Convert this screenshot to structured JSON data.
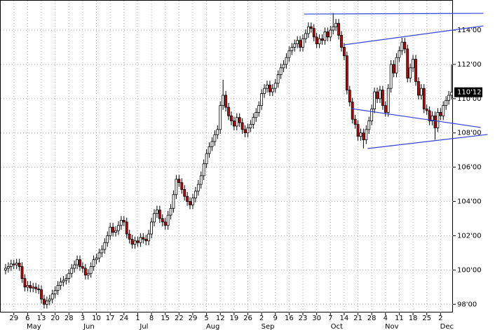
{
  "chart_data": {
    "type": "candlestick",
    "categories": [
      null,
      null,
      null,
      "29",
      null,
      null,
      null,
      null,
      "6",
      null,
      null,
      null,
      null,
      "13",
      null,
      null,
      null,
      null,
      "20",
      null,
      null,
      null,
      null,
      "28",
      null,
      null,
      null,
      null,
      "3",
      null,
      null,
      null,
      null,
      "10",
      null,
      null,
      null,
      null,
      "17",
      null,
      null,
      null,
      null,
      "24",
      null,
      null,
      null,
      null,
      "1",
      null,
      null,
      null,
      null,
      "8",
      null,
      null,
      null,
      null,
      "15",
      null,
      null,
      null,
      null,
      "22",
      null,
      null,
      null,
      null,
      "29",
      null,
      null,
      null,
      null,
      "5",
      null,
      null,
      null,
      null,
      "12",
      null,
      null,
      null,
      null,
      "19",
      null,
      null,
      null,
      null,
      "26",
      null,
      null,
      null,
      null,
      "2",
      null,
      null,
      null,
      null,
      "9",
      null,
      null,
      null,
      null,
      "16",
      null,
      null,
      null,
      null,
      "23",
      null,
      null,
      null,
      null,
      "30",
      null,
      null,
      null,
      null,
      "7",
      null,
      null,
      null,
      null,
      "14",
      null,
      null,
      null,
      null,
      "21",
      null,
      null,
      null,
      null,
      "28",
      null,
      null,
      null,
      null,
      "4",
      null,
      null,
      null,
      null,
      "11",
      null,
      null,
      null,
      null,
      "18",
      null,
      null,
      null,
      null,
      "25",
      null,
      null,
      null,
      null,
      "2",
      null,
      null,
      null,
      null
    ],
    "months": [
      null,
      null,
      null,
      null,
      null,
      null,
      null,
      null,
      "May",
      null,
      null,
      null,
      null,
      null,
      null,
      null,
      null,
      null,
      null,
      null,
      null,
      null,
      null,
      null,
      null,
      null,
      null,
      null,
      "Jun",
      null,
      null,
      null,
      null,
      null,
      null,
      null,
      null,
      null,
      null,
      null,
      null,
      null,
      null,
      null,
      null,
      null,
      null,
      null,
      "Jul",
      null,
      null,
      null,
      null,
      null,
      null,
      null,
      null,
      null,
      null,
      null,
      null,
      null,
      null,
      null,
      null,
      null,
      null,
      null,
      null,
      null,
      null,
      null,
      null,
      "Aug",
      null,
      null,
      null,
      null,
      null,
      null,
      null,
      null,
      null,
      null,
      null,
      null,
      null,
      null,
      null,
      null,
      null,
      null,
      null,
      "Sep",
      null,
      null,
      null,
      null,
      null,
      null,
      null,
      null,
      null,
      null,
      null,
      null,
      null,
      null,
      null,
      null,
      null,
      null,
      null,
      null,
      null,
      null,
      null,
      null,
      "Oct",
      null,
      null,
      null,
      null,
      null,
      null,
      null,
      null,
      null,
      null,
      null,
      null,
      null,
      null,
      null,
      null,
      null,
      null,
      null,
      "Nov",
      null,
      null,
      null,
      null,
      null,
      null,
      null,
      null,
      null,
      null,
      null,
      null,
      null,
      null,
      null,
      null,
      null,
      null,
      null,
      "Dec",
      null,
      null,
      null,
      null
    ],
    "open": [
      100.0,
      100.1,
      100.2,
      100.35,
      100.3,
      100.4,
      100.2,
      99.5,
      99.0,
      99.1,
      98.95,
      99.0,
      98.9,
      98.85,
      98.3,
      98.0,
      98.2,
      98.3,
      98.6,
      98.8,
      99.1,
      99.3,
      99.4,
      99.5,
      99.8,
      100.1,
      100.3,
      100.6,
      100.2,
      100.1,
      99.7,
      99.8,
      100.2,
      100.6,
      100.7,
      101.0,
      101.2,
      101.6,
      102.0,
      102.5,
      102.2,
      102.3,
      102.6,
      102.9,
      102.8,
      102.1,
      101.8,
      101.5,
      101.7,
      101.6,
      101.9,
      101.8,
      101.7,
      102.1,
      102.8,
      103.3,
      103.5,
      103.0,
      102.8,
      102.6,
      103.2,
      103.6,
      104.4,
      105.3,
      105.1,
      104.7,
      104.3,
      104.0,
      103.8,
      104.2,
      104.6,
      105.0,
      105.5,
      106.2,
      106.8,
      107.2,
      107.5,
      107.9,
      108.2,
      109.6,
      110.2,
      109.5,
      109.0,
      108.7,
      108.4,
      108.9,
      108.6,
      108.2,
      108.0,
      108.3,
      108.5,
      108.9,
      109.2,
      109.6,
      110.3,
      110.6,
      110.8,
      110.4,
      110.6,
      110.9,
      111.4,
      111.8,
      112.0,
      112.4,
      112.8,
      113.0,
      113.2,
      113.4,
      113.0,
      113.5,
      113.8,
      114.2,
      114.1,
      113.6,
      113.2,
      113.5,
      113.4,
      113.9,
      113.6,
      114.0,
      114.2,
      114.4,
      113.7,
      113.0,
      112.5,
      110.5,
      109.8,
      108.8,
      108.5,
      107.8,
      108.0,
      107.6,
      108.2,
      108.7,
      109.4,
      110.4,
      110.0,
      110.5,
      109.6,
      109.2,
      110.6,
      112.0,
      111.5,
      112.4,
      112.8,
      113.3,
      112.9,
      111.2,
      111.8,
      112.3,
      111.0,
      110.2,
      110.6,
      109.4,
      109.3,
      108.7,
      109.0,
      108.3,
      109.2,
      109.0,
      109.6,
      109.9,
      110.2
    ],
    "high": [
      100.35,
      100.45,
      100.6,
      100.6,
      100.65,
      100.65,
      100.45,
      99.75,
      99.35,
      99.35,
      99.25,
      99.25,
      99.15,
      99.1,
      98.55,
      98.45,
      98.55,
      98.85,
      99.05,
      99.35,
      99.55,
      99.65,
      99.75,
      100.05,
      100.35,
      100.55,
      100.85,
      100.85,
      100.45,
      100.35,
      100.05,
      100.45,
      100.85,
      100.95,
      101.25,
      101.45,
      101.85,
      102.25,
      102.75,
      102.75,
      102.55,
      102.85,
      103.15,
      103.15,
      103.05,
      102.35,
      102.05,
      101.95,
      101.95,
      102.15,
      102.15,
      102.05,
      102.35,
      103.05,
      103.55,
      103.75,
      103.75,
      103.25,
      103.05,
      103.45,
      103.85,
      104.65,
      105.55,
      105.55,
      105.35,
      104.95,
      104.55,
      104.25,
      104.45,
      104.85,
      105.25,
      105.75,
      106.45,
      107.05,
      107.45,
      107.75,
      108.15,
      108.45,
      109.85,
      111.1,
      110.45,
      109.75,
      109.25,
      108.95,
      109.15,
      109.15,
      108.85,
      108.45,
      108.55,
      108.75,
      109.15,
      109.45,
      109.85,
      110.55,
      110.85,
      111.05,
      111.05,
      110.85,
      111.15,
      111.65,
      112.05,
      112.25,
      112.65,
      113.05,
      113.25,
      113.45,
      113.65,
      113.65,
      113.75,
      114.05,
      114.45,
      114.45,
      114.35,
      113.85,
      113.75,
      113.75,
      114.15,
      114.15,
      114.25,
      115.0,
      114.65,
      114.65,
      113.95,
      113.25,
      112.75,
      110.75,
      110.05,
      109.05,
      108.75,
      108.25,
      108.25,
      108.45,
      108.95,
      109.65,
      110.65,
      110.65,
      110.75,
      110.75,
      109.85,
      110.85,
      112.25,
      112.25,
      112.65,
      113.05,
      113.55,
      113.55,
      113.15,
      112.05,
      112.55,
      112.55,
      111.25,
      110.85,
      110.85,
      109.65,
      109.55,
      109.25,
      109.25,
      109.45,
      109.45,
      109.85,
      110.15,
      110.45,
      112.0
    ],
    "low": [
      99.75,
      99.85,
      99.95,
      100.05,
      100.05,
      99.95,
      99.25,
      98.75,
      98.75,
      98.7,
      98.7,
      98.65,
      98.6,
      98.05,
      97.75,
      97.75,
      97.95,
      98.05,
      98.35,
      98.55,
      98.85,
      99.05,
      99.15,
      99.25,
      99.55,
      99.85,
      100.05,
      99.95,
      99.85,
      99.45,
      99.45,
      99.55,
      99.95,
      100.35,
      100.45,
      100.75,
      100.95,
      101.35,
      101.75,
      101.95,
      101.95,
      102.05,
      102.35,
      102.55,
      101.85,
      101.55,
      101.25,
      101.25,
      101.35,
      101.35,
      101.55,
      101.45,
      101.45,
      101.85,
      102.55,
      103.05,
      102.75,
      102.55,
      102.35,
      102.35,
      102.95,
      103.35,
      104.15,
      104.85,
      104.45,
      104.05,
      103.75,
      103.55,
      103.55,
      103.95,
      104.35,
      104.75,
      105.25,
      105.95,
      106.55,
      106.95,
      107.25,
      107.65,
      107.95,
      109.35,
      109.25,
      108.75,
      108.45,
      108.15,
      108.15,
      108.35,
      107.95,
      107.75,
      107.75,
      108.05,
      108.25,
      108.65,
      108.95,
      109.35,
      110.05,
      110.35,
      110.15,
      110.15,
      110.35,
      110.65,
      111.15,
      111.55,
      111.75,
      112.15,
      112.55,
      112.75,
      112.95,
      112.75,
      112.75,
      113.25,
      113.55,
      113.85,
      113.35,
      112.95,
      112.95,
      113.15,
      113.15,
      113.35,
      113.35,
      113.75,
      113.95,
      113.45,
      112.75,
      112.25,
      110.25,
      109.55,
      108.55,
      108.25,
      107.55,
      107.55,
      107.1,
      107.35,
      107.95,
      108.45,
      109.15,
      109.75,
      109.75,
      109.35,
      108.95,
      108.95,
      110.35,
      111.25,
      111.25,
      112.15,
      112.55,
      112.65,
      110.95,
      110.95,
      111.55,
      110.75,
      109.95,
      109.95,
      109.15,
      109.05,
      108.45,
      108.45,
      107.6,
      108.05,
      108.75,
      108.75,
      109.35,
      109.65,
      109.95
    ],
    "close": [
      100.1,
      100.2,
      100.35,
      100.3,
      100.4,
      100.2,
      99.5,
      99.0,
      99.1,
      98.95,
      99.0,
      98.9,
      98.85,
      98.3,
      98.0,
      98.2,
      98.3,
      98.6,
      98.8,
      99.1,
      99.3,
      99.4,
      99.5,
      99.8,
      100.1,
      100.3,
      100.6,
      100.2,
      100.1,
      99.7,
      99.8,
      100.2,
      100.6,
      100.7,
      101.0,
      101.2,
      101.6,
      102.0,
      102.5,
      102.2,
      102.3,
      102.6,
      102.9,
      102.8,
      102.1,
      101.8,
      101.5,
      101.7,
      101.6,
      101.9,
      101.8,
      101.7,
      102.1,
      102.8,
      103.3,
      103.5,
      103.0,
      102.8,
      102.6,
      103.2,
      103.6,
      104.4,
      105.3,
      105.1,
      104.7,
      104.3,
      104.0,
      103.8,
      104.2,
      104.6,
      105.0,
      105.5,
      106.2,
      106.8,
      107.2,
      107.5,
      107.9,
      108.2,
      109.6,
      110.2,
      109.5,
      109.0,
      108.7,
      108.4,
      108.9,
      108.6,
      108.2,
      108.0,
      108.3,
      108.5,
      108.9,
      109.2,
      109.6,
      110.3,
      110.6,
      110.8,
      110.4,
      110.6,
      110.9,
      111.4,
      111.8,
      112.0,
      112.4,
      112.8,
      113.0,
      113.2,
      113.4,
      113.0,
      113.5,
      113.8,
      114.2,
      114.1,
      113.6,
      113.2,
      113.5,
      113.4,
      113.9,
      113.6,
      114.0,
      114.2,
      114.4,
      113.7,
      113.0,
      112.5,
      110.5,
      109.8,
      108.8,
      108.5,
      107.8,
      108.0,
      107.6,
      108.2,
      108.7,
      109.4,
      110.4,
      110.0,
      110.5,
      109.6,
      109.2,
      110.6,
      112.0,
      111.5,
      112.4,
      112.8,
      113.3,
      112.9,
      111.2,
      111.8,
      112.3,
      111.0,
      110.2,
      110.6,
      109.4,
      109.3,
      108.7,
      109.0,
      108.3,
      109.2,
      109.0,
      109.6,
      109.9,
      110.2,
      110.375
    ],
    "up_color": "#ffffff",
    "down_color": "#cc0000",
    "trendline_color": "#3344dd",
    "ylim": [
      97.52,
      115.76
    ],
    "yticks": [
      {
        "value": 98,
        "label": "98'00"
      },
      {
        "value": 100,
        "label": "100'00"
      },
      {
        "value": 102,
        "label": "102'00"
      },
      {
        "value": 104,
        "label": "104'00"
      },
      {
        "value": 106,
        "label": "106'00"
      },
      {
        "value": 108,
        "label": "108'00"
      },
      {
        "value": 110,
        "label": "110'00"
      },
      {
        "value": 112,
        "label": "112'00"
      },
      {
        "value": 114,
        "label": "114'00"
      }
    ],
    "last_price": {
      "value": 110.375,
      "label": "110'12"
    },
    "trendlines": [
      {
        "x": [
          108.5,
          173.6
        ],
        "y": [
          114.94,
          114.98
        ]
      },
      {
        "x": [
          122.8,
          173.6
        ],
        "y": [
          113.14,
          114.25
        ]
      },
      {
        "x": [
          125.6,
          172.6
        ],
        "y": [
          109.42,
          108.32
        ]
      },
      {
        "x": [
          131.5,
          175.1
        ],
        "y": [
          107.09,
          107.91
        ]
      }
    ],
    "grid": true
  }
}
